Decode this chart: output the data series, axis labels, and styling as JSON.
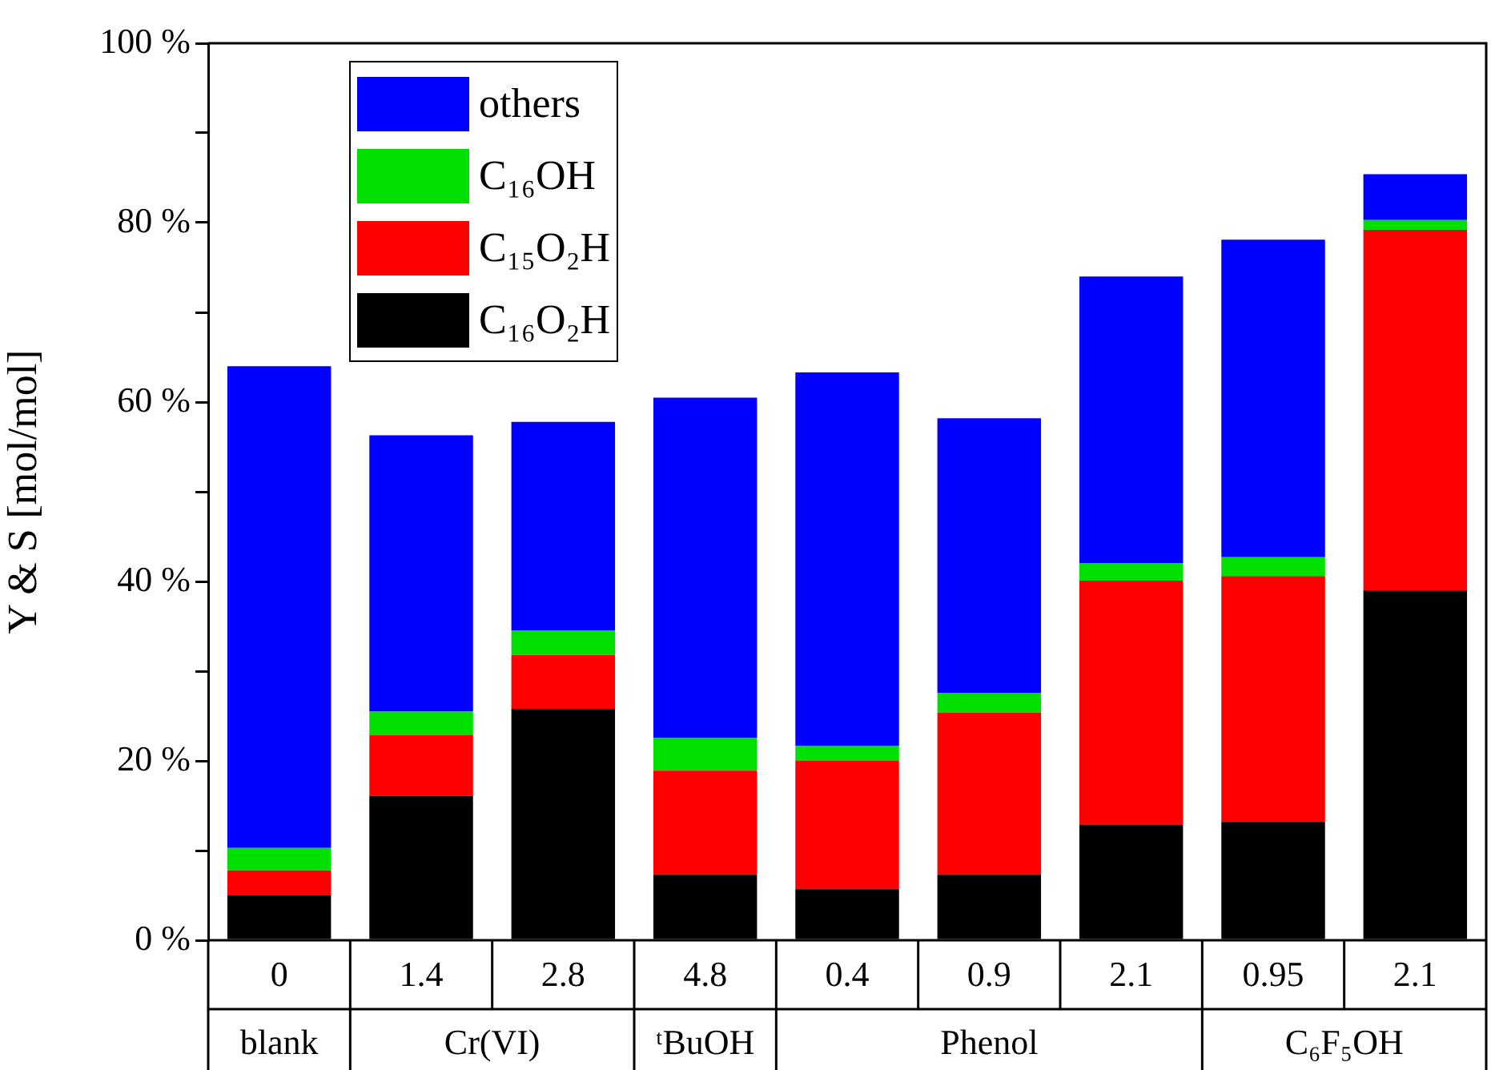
{
  "chart_data": {
    "type": "bar",
    "stacked": true,
    "ylabel": "Y & S [mol/mol]",
    "categories": [
      "0",
      "1.4",
      "2.8",
      "4.8",
      "0.4",
      "0.9",
      "2.1",
      "0.95",
      "2.1"
    ],
    "series": [
      {
        "name": "C₁₆O₂H",
        "color": "#000000",
        "values": [
          5.0,
          16.1,
          25.8,
          7.3,
          5.7,
          7.3,
          12.9,
          13.2,
          39.0
        ]
      },
      {
        "name": "C₁₅O₂H",
        "color": "#ff0000",
        "values": [
          2.8,
          6.8,
          6.0,
          11.6,
          14.3,
          18.1,
          27.2,
          27.4,
          40.2
        ]
      },
      {
        "name": "C₁₆OH",
        "color": "#00e000",
        "values": [
          2.5,
          2.6,
          2.7,
          3.7,
          1.7,
          2.2,
          1.9,
          2.1,
          1.1
        ]
      },
      {
        "name": "others",
        "color": "#0000ff",
        "values": [
          53.7,
          30.8,
          23.3,
          37.9,
          41.6,
          30.6,
          32.0,
          35.4,
          5.1
        ]
      }
    ],
    "ylim": [
      0,
      100
    ],
    "yticks": [
      {
        "value": 0,
        "label": "0 %"
      },
      {
        "value": 10,
        "label": null
      },
      {
        "value": 20,
        "label": "20 %"
      },
      {
        "value": 30,
        "label": null
      },
      {
        "value": 40,
        "label": "40 %"
      },
      {
        "value": 50,
        "label": null
      },
      {
        "value": 60,
        "label": "60 %"
      },
      {
        "value": 70,
        "label": null
      },
      {
        "value": 80,
        "label": "80 %"
      },
      {
        "value": 90,
        "label": null
      },
      {
        "value": 100,
        "label": "100 %"
      }
    ],
    "annotations": [
      "blank",
      "Cr(VI)",
      "ᵗBuOH",
      "Phenol",
      "C₆F₅OH"
    ],
    "legend": "top left",
    "grid": false
  }
}
